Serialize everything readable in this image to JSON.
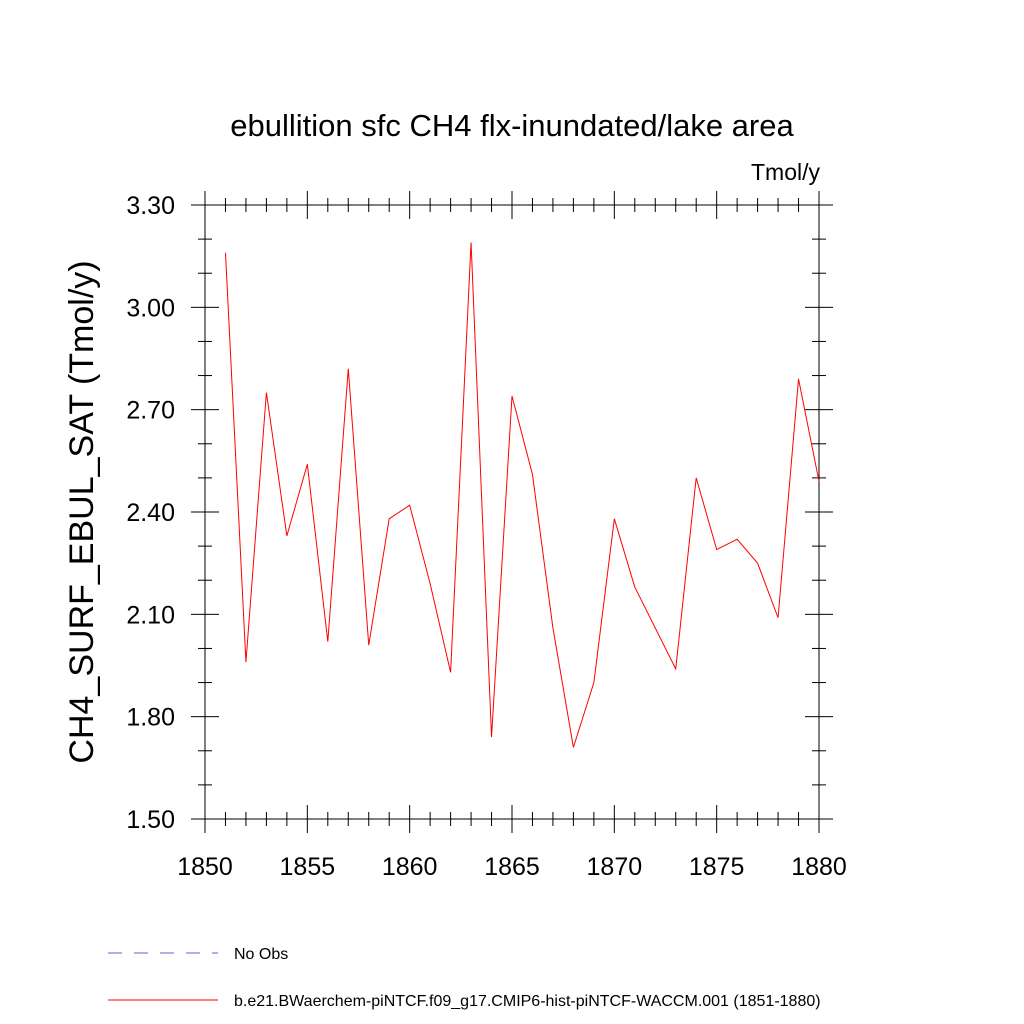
{
  "chart_data": {
    "type": "line",
    "title": "ebullition sfc CH4 flx-inundated/lake area",
    "units": "Tmol/y",
    "ylabel": "CH4_SURF_EBUL_SAT  (Tmol/y)",
    "xlabel": "",
    "xlim": [
      1850,
      1880
    ],
    "ylim": [
      1.5,
      3.3
    ],
    "x_ticks": [
      1850,
      1855,
      1860,
      1865,
      1870,
      1875,
      1880
    ],
    "x_tick_labels": [
      "1850",
      "1855",
      "1860",
      "1865",
      "1870",
      "1875",
      "1880"
    ],
    "y_ticks": [
      1.5,
      1.8,
      2.1,
      2.4,
      2.7,
      3.0,
      3.3
    ],
    "y_tick_labels": [
      "1.50",
      "1.80",
      "2.10",
      "2.40",
      "2.70",
      "3.00",
      "3.30"
    ],
    "grid": false,
    "legend_position": "bottom-left",
    "series": [
      {
        "name": "b.e21.BWaerchem-piNTCF.f09_g17.CMIP6-hist-piNTCF-WACCM.001 (1851-1880)",
        "color": "#ff0000",
        "dash": "solid",
        "x": [
          1851,
          1852,
          1853,
          1854,
          1855,
          1856,
          1857,
          1858,
          1859,
          1860,
          1861,
          1862,
          1863,
          1864,
          1865,
          1866,
          1867,
          1868,
          1869,
          1870,
          1871,
          1872,
          1873,
          1874,
          1875,
          1876,
          1877,
          1878,
          1879,
          1880
        ],
        "y": [
          3.16,
          1.96,
          2.75,
          2.33,
          2.54,
          2.02,
          2.82,
          2.01,
          2.38,
          2.42,
          2.19,
          1.93,
          3.19,
          1.74,
          2.74,
          2.51,
          2.06,
          1.71,
          1.9,
          2.38,
          2.18,
          2.06,
          1.94,
          2.5,
          2.29,
          2.32,
          2.25,
          2.09,
          2.79,
          2.49
        ]
      }
    ],
    "legend": [
      {
        "label": "No Obs",
        "color": "#6a5acd",
        "dash": "dashed"
      },
      {
        "label": "b.e21.BWaerchem-piNTCF.f09_g17.CMIP6-hist-piNTCF-WACCM.001 (1851-1880)",
        "color": "#ff0000",
        "dash": "solid"
      }
    ]
  }
}
